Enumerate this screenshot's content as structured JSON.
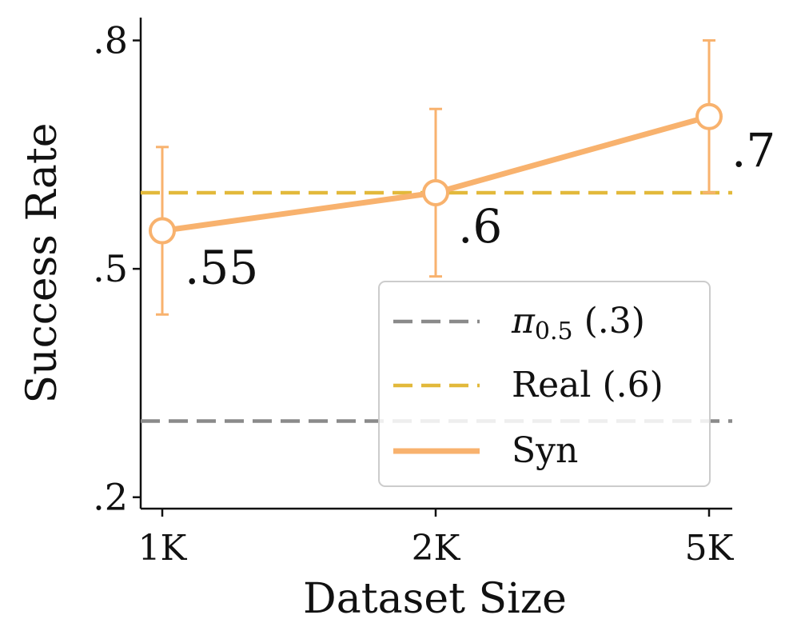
{
  "chart_data": {
    "type": "line",
    "xlabel": "Dataset Size",
    "ylabel": "Success Rate",
    "categories": [
      "1K",
      "2K",
      "5K"
    ],
    "ylim": [
      0.185,
      0.83
    ],
    "yticks": [
      0.2,
      0.5,
      0.8
    ],
    "ytick_labels": [
      ".2",
      ".5",
      ".8"
    ],
    "grid": false,
    "legend_position": "bottom-right",
    "series": [
      {
        "name": "Syn",
        "kind": "line-with-markers",
        "color": "#F8B26E",
        "values": [
          0.55,
          0.6,
          0.7
        ],
        "error_low": [
          0.44,
          0.49,
          0.6
        ],
        "error_high": [
          0.66,
          0.71,
          0.8
        ],
        "data_labels": [
          ".55",
          ".6",
          ".7"
        ]
      },
      {
        "name": "Real (.6)",
        "kind": "horizontal-dashed",
        "color": "#E2B93B",
        "value": 0.6
      },
      {
        "name": "π0.5 (.3)",
        "name_symbol": "π",
        "name_subscript": "0.5",
        "name_suffix": " (.3)",
        "kind": "horizontal-dashed",
        "color": "#8A8A8A",
        "value": 0.3
      }
    ]
  }
}
